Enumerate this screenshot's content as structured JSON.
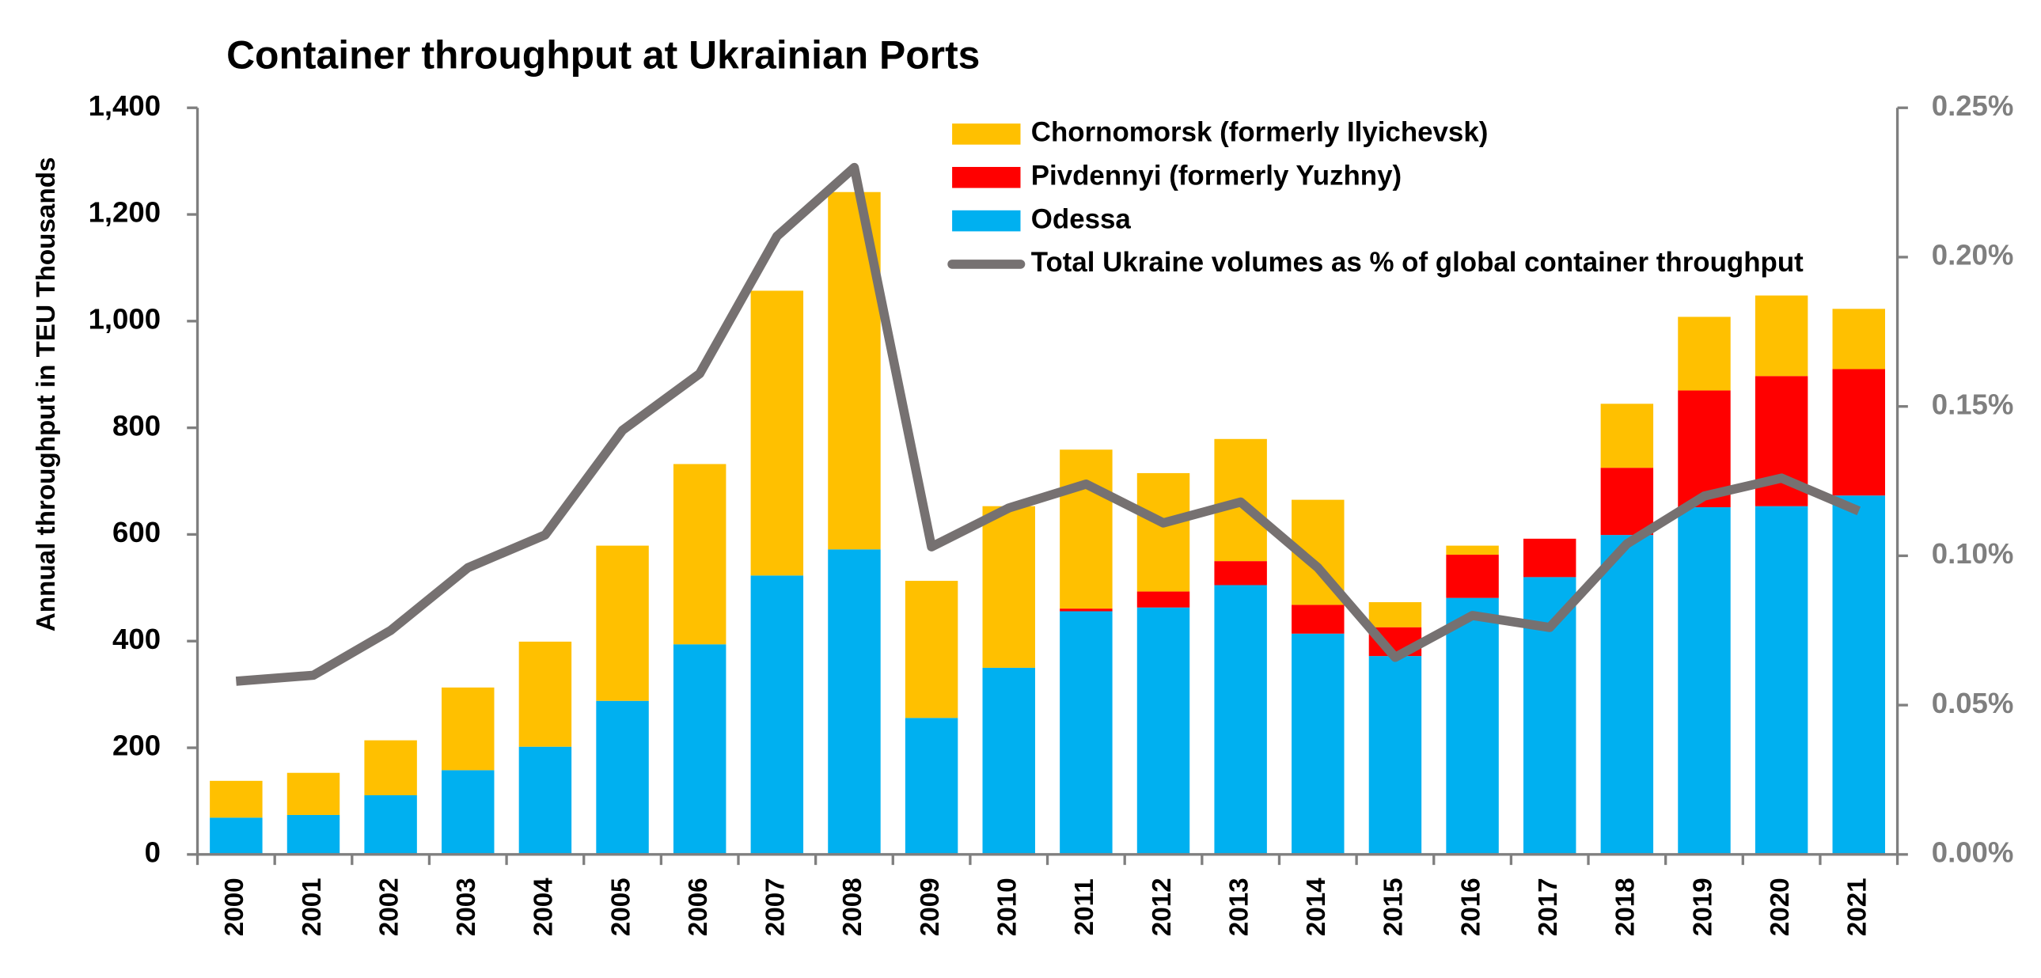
{
  "chart_data": {
    "type": "bar",
    "title": "Container throughput at Ukrainian Ports",
    "y_label": "Annual throughput in TEU Thousands",
    "categories": [
      "2000",
      "2001",
      "2002",
      "2003",
      "2004",
      "2005",
      "2006",
      "2007",
      "2008",
      "2009",
      "2010",
      "2011",
      "2012",
      "2013",
      "2014",
      "2015",
      "2016",
      "2017",
      "2018",
      "2019",
      "2020",
      "2021"
    ],
    "stacked": true,
    "series": [
      {
        "name": "Odessa",
        "color": "#00b0f0",
        "values": [
          69,
          74,
          111,
          158,
          202,
          288,
          394,
          523,
          572,
          256,
          350,
          456,
          463,
          505,
          414,
          372,
          481,
          520,
          599,
          651,
          653,
          673
        ]
      },
      {
        "name": "Pivdennyi (formerly Yuzhny)",
        "color": "#ff0000",
        "values": [
          0,
          0,
          0,
          0,
          0,
          0,
          0,
          0,
          0,
          0,
          0,
          5,
          30,
          45,
          54,
          54,
          81,
          72,
          126,
          219,
          244,
          237
        ]
      },
      {
        "name": "Chornomorsk (formerly Ilyichevsk)",
        "color": "#ffc000",
        "values": [
          69,
          79,
          103,
          155,
          197,
          291,
          338,
          534,
          670,
          257,
          303,
          298,
          222,
          229,
          197,
          47,
          17,
          0,
          120,
          138,
          151,
          113
        ]
      },
      {
        "name": "Total Ukraine volumes as % of global container throughput",
        "color": "#767171",
        "type": "line",
        "axis": "y2",
        "values": [
          0.058,
          0.06,
          0.075,
          0.096,
          0.107,
          0.142,
          0.161,
          0.207,
          0.23,
          0.103,
          0.116,
          0.124,
          0.111,
          0.118,
          0.096,
          0.066,
          0.08,
          0.076,
          0.104,
          0.12,
          0.126,
          0.115
        ]
      }
    ],
    "ylim": [
      0,
      1400
    ],
    "yticks": [
      0,
      200,
      400,
      600,
      800,
      {
        "value": 1000,
        "label": "1,000"
      },
      {
        "value": 1200,
        "label": "1,200"
      },
      {
        "value": 1400,
        "label": "1,400"
      }
    ],
    "y2lim": [
      0,
      0.25
    ],
    "y2ticks": [
      {
        "value": 0,
        "label": "0.00%"
      },
      {
        "value": 0.05,
        "label": "0.05%"
      },
      {
        "value": 0.1,
        "label": "0.10%"
      },
      {
        "value": 0.15,
        "label": "0.15%"
      },
      {
        "value": 0.2,
        "label": "0.20%"
      },
      {
        "value": 0.25,
        "label": "0.25%"
      }
    ],
    "grid": false
  }
}
